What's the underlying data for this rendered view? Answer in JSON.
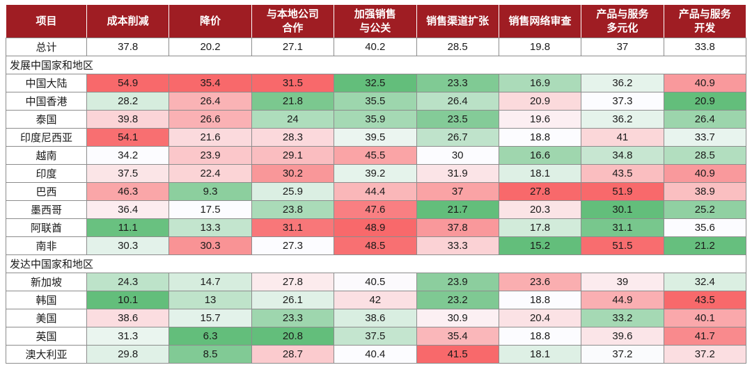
{
  "colors": {
    "header_bg": "#9f1d23",
    "header_text": "#ffffff",
    "border": "#8c8c8c",
    "text": "#1a1a1a",
    "scale_min": "#63be7b",
    "scale_mid": "#fcfcff",
    "scale_max": "#f8696b"
  },
  "chart_data": {
    "type": "heatmap",
    "title": "",
    "corner_label": "项目",
    "columns": [
      "成本削减",
      "降价",
      "与本地公司\n合作",
      "加强销售\n与公关",
      "销售渠道扩张",
      "销售网络审查",
      "产品与服务\n多元化",
      "产品与服务\n开发"
    ],
    "total_row": {
      "label": "总计",
      "values": [
        37.8,
        20.2,
        27.1,
        40.2,
        28.5,
        19.8,
        37,
        33.8
      ]
    },
    "sections": [
      {
        "label": "发展中国家和地区",
        "rows": [
          {
            "label": "中国大陆",
            "values": [
              54.9,
              35.4,
              31.5,
              32.5,
              23.3,
              16.9,
              36.2,
              40.9
            ]
          },
          {
            "label": "中国香港",
            "values": [
              28.2,
              26.4,
              21.8,
              35.5,
              26.4,
              20.9,
              37.3,
              20.9
            ]
          },
          {
            "label": "泰国",
            "values": [
              39.8,
              26.6,
              24,
              35.9,
              23.5,
              19.6,
              36.2,
              26.4
            ]
          },
          {
            "label": "印度尼西亚",
            "values": [
              54.1,
              21.6,
              28.3,
              39.5,
              26.7,
              18.8,
              41,
              33.7
            ]
          },
          {
            "label": "越南",
            "values": [
              34.2,
              23.9,
              29.1,
              45.5,
              30,
              16.6,
              34.8,
              28.5
            ]
          },
          {
            "label": "印度",
            "values": [
              37.5,
              22.4,
              30.2,
              39.2,
              31.9,
              18.1,
              43.5,
              40.9
            ]
          },
          {
            "label": "巴西",
            "values": [
              46.3,
              9.3,
              25.9,
              44.4,
              37,
              27.8,
              51.9,
              38.9
            ]
          },
          {
            "label": "墨西哥",
            "values": [
              36.4,
              17.5,
              23.8,
              47.6,
              21.7,
              20.3,
              30.1,
              25.2
            ]
          },
          {
            "label": "阿联酋",
            "values": [
              11.1,
              13.3,
              31.1,
              48.9,
              37.8,
              17.8,
              31.1,
              35.6
            ]
          },
          {
            "label": "南非",
            "values": [
              30.3,
              30.3,
              27.3,
              48.5,
              33.3,
              15.2,
              51.5,
              21.2
            ]
          }
        ]
      },
      {
        "label": "发达中国家和地区",
        "rows": [
          {
            "label": "新加坡",
            "values": [
              24.3,
              14.7,
              27.8,
              40.5,
              23.9,
              23.6,
              39,
              32.4
            ]
          },
          {
            "label": "韩国",
            "values": [
              10.1,
              13,
              26.1,
              42,
              23.2,
              18.8,
              44.9,
              43.5
            ]
          },
          {
            "label": "美国",
            "values": [
              38.6,
              15.7,
              23.3,
              38.6,
              30.9,
              20.4,
              33.2,
              40.1
            ]
          },
          {
            "label": "英国",
            "values": [
              31.3,
              6.3,
              20.8,
              37.5,
              35.4,
              18.8,
              39.6,
              41.7
            ]
          },
          {
            "label": "澳大利亚",
            "values": [
              29.8,
              8.5,
              28.7,
              40.4,
              41.5,
              18.1,
              37.2,
              37.2
            ]
          }
        ]
      }
    ],
    "color_scale": {
      "scope": "per-column over country rows",
      "min_color_meaning": "column minimum (green)",
      "mid_color_meaning": "column median (white)",
      "max_color_meaning": "column maximum (red)"
    }
  }
}
